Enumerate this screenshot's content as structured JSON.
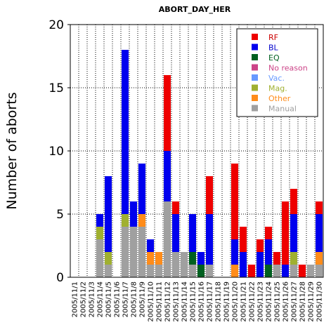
{
  "chart_data": {
    "type": "bar",
    "stacked": true,
    "title": "ABORT_DAY_HER",
    "ylabel": "Number of aborts",
    "xlabel": "",
    "ylim": [
      0,
      20
    ],
    "yticks": [
      0,
      5,
      10,
      15,
      20
    ],
    "grid": "dotted",
    "legend_position": "top-right",
    "categories": [
      "2005/11/1",
      "2005/11/2",
      "2005/11/3",
      "2005/11/4",
      "2005/11/5",
      "2005/11/6",
      "2005/11/7",
      "2005/11/8",
      "2005/11/9",
      "2005/11/10",
      "2005/11/11",
      "2005/11/12",
      "2005/11/13",
      "2005/11/14",
      "2005/11/15",
      "2005/11/16",
      "2005/11/17",
      "2005/11/18",
      "2005/11/19",
      "2005/11/20",
      "2005/11/21",
      "2005/11/22",
      "2005/11/23",
      "2005/11/24",
      "2005/11/25",
      "2005/11/26",
      "2005/11/27",
      "2005/11/28",
      "2005/11/29",
      "2005/11/30"
    ],
    "series": [
      {
        "name": "Manual",
        "color": "#a0a0a0",
        "values": [
          0,
          0,
          0,
          3,
          1,
          0,
          4,
          4,
          4,
          1,
          1,
          6,
          2,
          2,
          1,
          0,
          1,
          0,
          0,
          0,
          0,
          0,
          0,
          0,
          1,
          0,
          1,
          0,
          1,
          1
        ]
      },
      {
        "name": "Other",
        "color": "#ff8c1a",
        "values": [
          0,
          0,
          0,
          0,
          0,
          0,
          0,
          0,
          1,
          1,
          1,
          0,
          0,
          0,
          0,
          0,
          0,
          0,
          0,
          1,
          0,
          0,
          0,
          0,
          0,
          0,
          0,
          0,
          0,
          1
        ]
      },
      {
        "name": "Mag.",
        "color": "#a0b030",
        "values": [
          0,
          0,
          0,
          1,
          1,
          0,
          1,
          0,
          0,
          0,
          0,
          0,
          0,
          0,
          0,
          0,
          0,
          0,
          0,
          0,
          0,
          0,
          0,
          0,
          0,
          0,
          1,
          0,
          0,
          0
        ]
      },
      {
        "name": "Vac.",
        "color": "#6699ff",
        "values": [
          0,
          0,
          0,
          0,
          0,
          0,
          0,
          0,
          0,
          0,
          0,
          0,
          0,
          0,
          0,
          0,
          0,
          0,
          0,
          0,
          0,
          0,
          0,
          0,
          0,
          0,
          0,
          0,
          0,
          0
        ]
      },
      {
        "name": "No reason",
        "color": "#cc4488",
        "values": [
          0,
          0,
          0,
          0,
          0,
          0,
          0,
          0,
          0,
          0,
          0,
          0,
          0,
          0,
          0,
          0,
          0,
          0,
          0,
          0,
          0,
          0,
          0,
          0,
          0,
          0,
          0,
          0,
          0,
          0
        ]
      },
      {
        "name": "EQ",
        "color": "#006020",
        "values": [
          0,
          0,
          0,
          0,
          0,
          0,
          0,
          0,
          0,
          0,
          0,
          0,
          0,
          0,
          1,
          1,
          0,
          0,
          0,
          0,
          0,
          0,
          0,
          1,
          0,
          0,
          0,
          0,
          0,
          0
        ]
      },
      {
        "name": "BL",
        "color": "#0000ee",
        "values": [
          0,
          0,
          0,
          1,
          6,
          0,
          13,
          2,
          4,
          1,
          0,
          4,
          3,
          0,
          3,
          1,
          4,
          0,
          0,
          2,
          2,
          0,
          2,
          2,
          0,
          1,
          3,
          0,
          0,
          3
        ]
      },
      {
        "name": "RF",
        "color": "#ee0000",
        "values": [
          0,
          0,
          0,
          0,
          0,
          0,
          0,
          0,
          0,
          0,
          0,
          6,
          1,
          0,
          0,
          0,
          3,
          0,
          0,
          6,
          2,
          1,
          1,
          1,
          1,
          5,
          2,
          1,
          0,
          1
        ]
      }
    ],
    "legend_order": [
      "RF",
      "BL",
      "EQ",
      "No reason",
      "Vac.",
      "Mag.",
      "Other",
      "Manual"
    ],
    "legend_text_colors": {
      "RF": "#cc0000",
      "BL": "#0000cc",
      "EQ": "#006020",
      "No reason": "#cc4488",
      "Vac.": "#6699ff",
      "Mag.": "#a0b030",
      "Other": "#ff8c1a",
      "Manual": "#a0a0a0"
    }
  }
}
